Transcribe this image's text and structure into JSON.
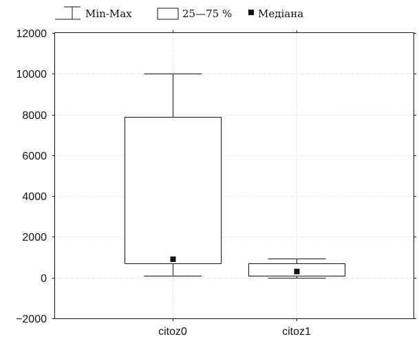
{
  "legend": {
    "minmax_label": "Min-Max",
    "range_label": "25—75 %",
    "median_label": "Медіана"
  },
  "chart_data": {
    "type": "boxplot",
    "title": "",
    "xlabel": "",
    "ylabel": "",
    "ylim": [
      -2000,
      12000
    ],
    "yticks": [
      -2000,
      0,
      2000,
      4000,
      6000,
      8000,
      10000,
      12000
    ],
    "y_tick_labels": [
      "−2000",
      "0",
      "2000",
      "4000",
      "6000",
      "8000",
      "10000",
      "12000"
    ],
    "grid": true,
    "legend_position": "top-left",
    "categories": [
      "citoz0",
      "citoz1"
    ],
    "boxes": [
      {
        "label": "citoz0",
        "min": 100,
        "q1": 700,
        "median": 900,
        "q3": 7900,
        "max": 10000
      },
      {
        "label": "citoz1",
        "min": 0,
        "q1": 100,
        "median": 300,
        "q3": 700,
        "max": 950
      }
    ],
    "colors": {
      "box_fill": "#ffffff",
      "lines": "#111111",
      "median": "#111111",
      "grid": "#d6d6d6"
    }
  }
}
